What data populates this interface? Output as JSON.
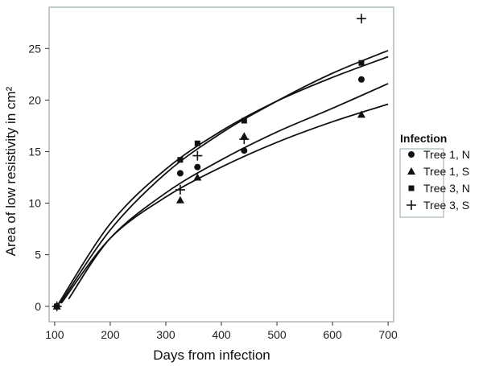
{
  "chart_data": {
    "type": "scatter",
    "xlabel": "Days from infection",
    "ylabel": "Area of low resistivity in cm²",
    "xlim": [
      90,
      710
    ],
    "ylim": [
      -1.5,
      29
    ],
    "x_ticks": [
      100,
      200,
      300,
      400,
      500,
      600,
      700
    ],
    "y_ticks": [
      0,
      5,
      10,
      15,
      20,
      25
    ],
    "grid": false,
    "legend_title": "Infection",
    "legend_position": "right",
    "series": [
      {
        "name": "Tree 1, N",
        "marker": "circle",
        "x": [
          104,
          326,
          357,
          441,
          652
        ],
        "y": [
          0,
          12.9,
          13.5,
          15.1,
          22.0
        ],
        "fit": [
          [
            125,
            0.7
          ],
          [
            200,
            6.6
          ],
          [
            300,
            11.0
          ],
          [
            400,
            14.2
          ],
          [
            500,
            16.9
          ],
          [
            600,
            19.2
          ],
          [
            700,
            21.6
          ]
        ]
      },
      {
        "name": "Tree 1, S",
        "marker": "triangle",
        "x": [
          104,
          326,
          357,
          441,
          652
        ],
        "y": [
          0,
          10.3,
          12.5,
          16.5,
          18.6
        ],
        "fit": [
          [
            112,
            0.3
          ],
          [
            200,
            6.6
          ],
          [
            300,
            10.6
          ],
          [
            400,
            13.5
          ],
          [
            500,
            15.9
          ],
          [
            600,
            17.9
          ],
          [
            700,
            19.6
          ]
        ]
      },
      {
        "name": "Tree 3, N",
        "marker": "square",
        "x": [
          104,
          326,
          357,
          441,
          652
        ],
        "y": [
          0,
          14.2,
          15.8,
          18.0,
          23.6
        ],
        "fit": [
          [
            104,
            0
          ],
          [
            200,
            8.0
          ],
          [
            300,
            13.3
          ],
          [
            400,
            17.0
          ],
          [
            500,
            19.9
          ],
          [
            600,
            22.2
          ],
          [
            700,
            24.2
          ]
        ]
      },
      {
        "name": "Tree 3, S",
        "marker": "plus",
        "x": [
          104,
          326,
          357,
          441,
          652
        ],
        "y": [
          0,
          11.3,
          14.6,
          16.2,
          27.9
        ],
        "fit": [
          [
            110,
            0.3
          ],
          [
            200,
            7.4
          ],
          [
            300,
            12.9
          ],
          [
            400,
            16.8
          ],
          [
            500,
            19.9
          ],
          [
            600,
            22.6
          ],
          [
            700,
            24.8
          ]
        ]
      }
    ]
  }
}
